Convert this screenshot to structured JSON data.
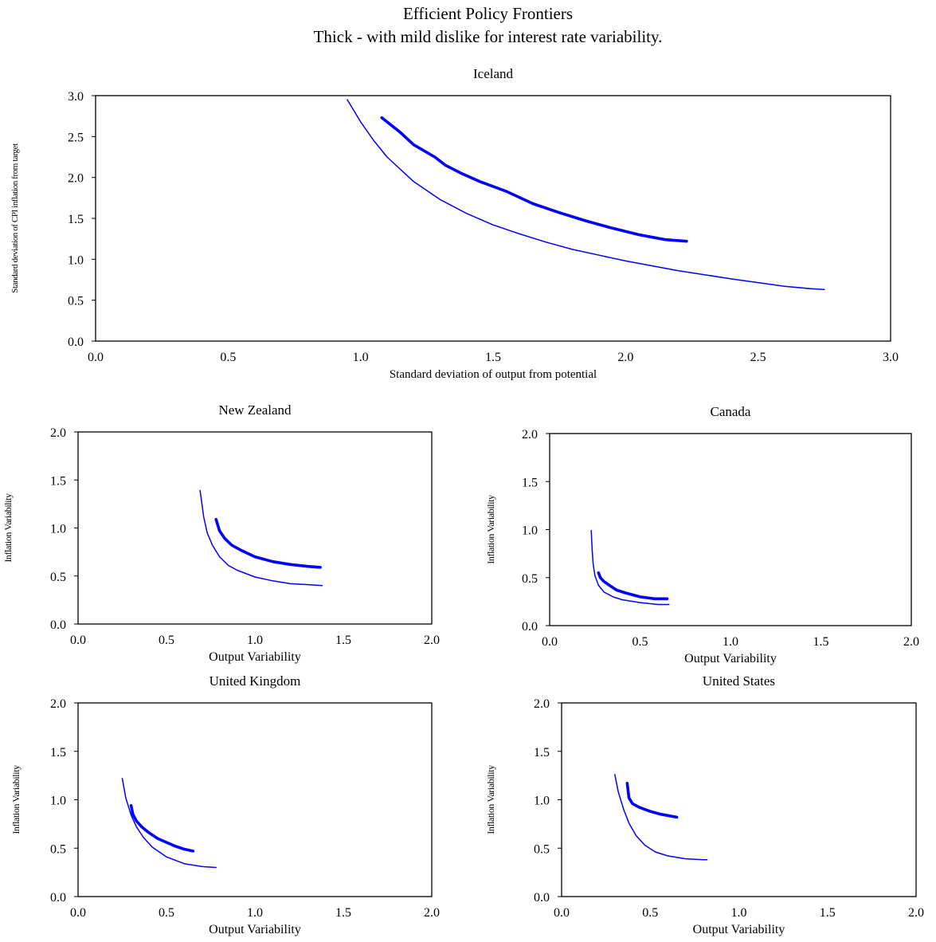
{
  "figure": {
    "title": "Efficient Policy Frontiers",
    "subtitle": "Thick - with mild dislike for interest rate variability."
  },
  "chart_data": [
    {
      "type": "line",
      "title": "Iceland",
      "xlabel": "Standard deviation of output from potential",
      "ylabel": "Standard deviation of CPI inflation from target",
      "xlim": [
        0,
        3
      ],
      "ylim": [
        0,
        3
      ],
      "xticks": [
        "0.0",
        "0.5",
        "1.0",
        "1.5",
        "2.0",
        "2.5",
        "3.0"
      ],
      "yticks": [
        "0.0",
        "0.5",
        "1.0",
        "1.5",
        "2.0",
        "2.5",
        "3.0"
      ],
      "legend": "none",
      "series": [
        {
          "style": "thin",
          "color": "#0000ff",
          "x": [
            0.95,
            1.0,
            1.05,
            1.1,
            1.2,
            1.3,
            1.4,
            1.5,
            1.6,
            1.7,
            1.8,
            1.9,
            2.0,
            2.2,
            2.4,
            2.6,
            2.7,
            2.75
          ],
          "y": [
            2.95,
            2.68,
            2.45,
            2.25,
            1.95,
            1.73,
            1.56,
            1.42,
            1.31,
            1.21,
            1.12,
            1.05,
            0.98,
            0.86,
            0.76,
            0.67,
            0.64,
            0.63
          ]
        },
        {
          "style": "thick",
          "color": "#0000ff",
          "x": [
            1.08,
            1.15,
            1.2,
            1.28,
            1.32,
            1.38,
            1.45,
            1.55,
            1.65,
            1.75,
            1.85,
            1.95,
            2.05,
            2.15,
            2.23
          ],
          "y": [
            2.73,
            2.55,
            2.4,
            2.25,
            2.15,
            2.05,
            1.95,
            1.83,
            1.68,
            1.57,
            1.47,
            1.38,
            1.3,
            1.24,
            1.22
          ]
        }
      ]
    },
    {
      "type": "line",
      "title": "New Zealand",
      "xlabel": "Output Variability",
      "ylabel": "Inflation Variability",
      "xlim": [
        0,
        2
      ],
      "ylim": [
        0,
        2
      ],
      "xticks": [
        "0.0",
        "0.5",
        "1.0",
        "1.5",
        "2.0"
      ],
      "yticks": [
        "0.0",
        "0.5",
        "1.0",
        "1.5",
        "2.0"
      ],
      "legend": "none",
      "series": [
        {
          "style": "thin",
          "color": "#0000ff",
          "x": [
            0.69,
            0.71,
            0.73,
            0.76,
            0.8,
            0.85,
            0.9,
            1.0,
            1.1,
            1.2,
            1.3,
            1.38
          ],
          "y": [
            1.39,
            1.12,
            0.95,
            0.82,
            0.7,
            0.61,
            0.56,
            0.49,
            0.45,
            0.42,
            0.41,
            0.4
          ]
        },
        {
          "style": "thick",
          "color": "#0000ff",
          "x": [
            0.78,
            0.8,
            0.83,
            0.87,
            0.92,
            1.0,
            1.1,
            1.2,
            1.3,
            1.37
          ],
          "y": [
            1.09,
            0.97,
            0.89,
            0.82,
            0.77,
            0.7,
            0.65,
            0.62,
            0.6,
            0.59
          ]
        }
      ]
    },
    {
      "type": "line",
      "title": "Canada",
      "xlabel": "Output Variability",
      "ylabel": "Inflation Variability",
      "xlim": [
        0,
        2
      ],
      "ylim": [
        0,
        2
      ],
      "xticks": [
        "0.0",
        "0.5",
        "1.0",
        "1.5",
        "2.0"
      ],
      "yticks": [
        "0.0",
        "0.5",
        "1.0",
        "1.5",
        "2.0"
      ],
      "legend": "none",
      "series": [
        {
          "style": "thin",
          "color": "#0000ff",
          "x": [
            0.23,
            0.235,
            0.24,
            0.25,
            0.27,
            0.3,
            0.35,
            0.4,
            0.5,
            0.6,
            0.66
          ],
          "y": [
            0.99,
            0.8,
            0.65,
            0.52,
            0.42,
            0.35,
            0.3,
            0.27,
            0.24,
            0.22,
            0.22
          ]
        },
        {
          "style": "thick",
          "color": "#0000ff",
          "x": [
            0.27,
            0.28,
            0.3,
            0.33,
            0.37,
            0.42,
            0.5,
            0.58,
            0.65
          ],
          "y": [
            0.55,
            0.5,
            0.46,
            0.42,
            0.37,
            0.34,
            0.3,
            0.28,
            0.28
          ]
        }
      ]
    },
    {
      "type": "line",
      "title": "United Kingdom",
      "xlabel": "Output Variability",
      "ylabel": "Inflation Variability",
      "xlim": [
        0,
        2
      ],
      "ylim": [
        0,
        2
      ],
      "xticks": [
        "0.0",
        "0.5",
        "1.0",
        "1.5",
        "2.0"
      ],
      "yticks": [
        "0.0",
        "0.5",
        "1.0",
        "1.5",
        "2.0"
      ],
      "legend": "none",
      "series": [
        {
          "style": "thin",
          "color": "#0000ff",
          "x": [
            0.25,
            0.27,
            0.3,
            0.33,
            0.37,
            0.42,
            0.5,
            0.6,
            0.7,
            0.78
          ],
          "y": [
            1.22,
            1.02,
            0.84,
            0.72,
            0.61,
            0.51,
            0.41,
            0.34,
            0.31,
            0.3
          ]
        },
        {
          "style": "thick",
          "color": "#0000ff",
          "x": [
            0.3,
            0.31,
            0.33,
            0.36,
            0.4,
            0.45,
            0.5,
            0.55,
            0.6,
            0.65
          ],
          "y": [
            0.94,
            0.85,
            0.78,
            0.72,
            0.66,
            0.6,
            0.56,
            0.52,
            0.49,
            0.47
          ]
        }
      ]
    },
    {
      "type": "line",
      "title": "United States",
      "xlabel": "Output Variability",
      "ylabel": "Inflation Variability",
      "xlim": [
        0,
        2
      ],
      "ylim": [
        0,
        2
      ],
      "xticks": [
        "0.0",
        "0.5",
        "1.0",
        "1.5",
        "2.0"
      ],
      "yticks": [
        "0.0",
        "0.5",
        "1.0",
        "1.5",
        "2.0"
      ],
      "legend": "none",
      "series": [
        {
          "style": "thin",
          "color": "#0000ff",
          "x": [
            0.3,
            0.32,
            0.35,
            0.38,
            0.42,
            0.47,
            0.53,
            0.6,
            0.7,
            0.8,
            0.82
          ],
          "y": [
            1.26,
            1.08,
            0.9,
            0.76,
            0.63,
            0.53,
            0.46,
            0.42,
            0.39,
            0.38,
            0.38
          ]
        },
        {
          "style": "thick",
          "color": "#0000ff",
          "x": [
            0.37,
            0.375,
            0.38,
            0.4,
            0.44,
            0.5,
            0.56,
            0.62,
            0.65
          ],
          "y": [
            1.17,
            1.1,
            1.02,
            0.96,
            0.92,
            0.88,
            0.85,
            0.83,
            0.82
          ]
        }
      ]
    }
  ]
}
